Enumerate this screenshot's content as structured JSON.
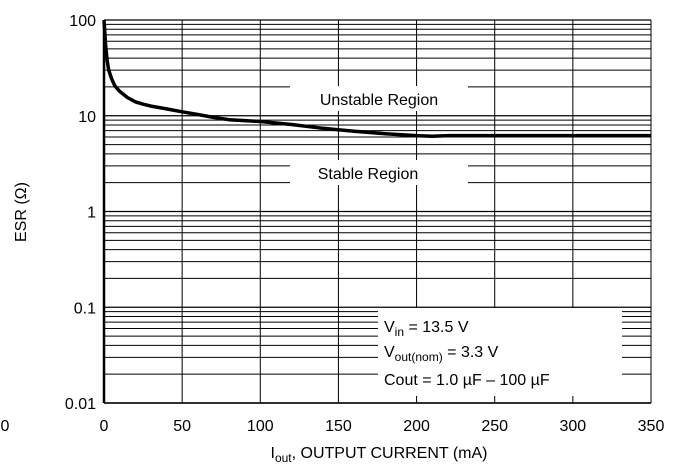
{
  "chart_data": {
    "type": "line",
    "title": "",
    "xlabel_main": "I",
    "xlabel_sub": "out",
    "xlabel_rest": ", OUTPUT CURRENT (mA)",
    "ylabel": "ESR (Ω)",
    "x_scale": "linear",
    "y_scale": "log",
    "xlim": [
      0,
      350
    ],
    "ylim": [
      0.01,
      100
    ],
    "grid": true,
    "x_ticks": [
      0,
      50,
      100,
      150,
      200,
      250,
      300,
      350
    ],
    "x_tick_labels": [
      "0",
      "50",
      "100",
      "150",
      "200",
      "250",
      "300",
      "350"
    ],
    "stray_x_tick_label": "0",
    "y_ticks": [
      0.01,
      0.1,
      1,
      10,
      100
    ],
    "y_tick_labels": [
      "0.01",
      "0.1",
      "1",
      "10",
      "100"
    ],
    "series": [
      {
        "x": [
          0,
          1,
          2,
          3,
          5,
          7,
          10,
          15,
          20,
          25,
          30,
          40,
          50,
          60,
          70,
          80,
          90,
          100,
          120,
          140,
          160,
          180,
          200,
          210,
          220,
          250,
          300,
          350
        ],
        "y": [
          100,
          55,
          38,
          30,
          24,
          20.5,
          18,
          15.5,
          14,
          13.2,
          12.6,
          11.8,
          11.0,
          10.3,
          9.6,
          9.1,
          8.9,
          8.7,
          8.1,
          7.4,
          6.9,
          6.5,
          6.2,
          6.1,
          6.2,
          6.2,
          6.2,
          6.2
        ],
        "color": "#000000"
      }
    ],
    "annotations": {
      "unstable": "Unstable Region",
      "stable": "Stable Region",
      "vin_main": "V",
      "vin_sub": "in",
      "vin_rest": " = 13.5 V",
      "vout_main": "V",
      "vout_sub": "out(nom)",
      "vout_rest": " = 3.3 V",
      "cout": "Cout = 1.0 µF – 100 µF"
    }
  }
}
